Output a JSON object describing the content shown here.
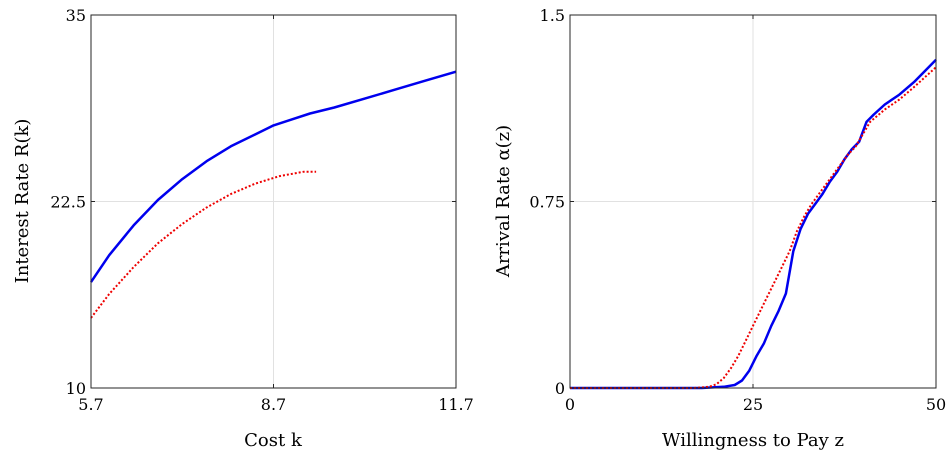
{
  "chart_data": [
    {
      "type": "line",
      "title": "",
      "xlabel": "Cost k",
      "ylabel": "Interest Rate R(k)",
      "xlim": [
        5.7,
        11.7
      ],
      "ylim": [
        10,
        35
      ],
      "xticks": [
        5.7,
        8.7,
        11.7
      ],
      "xtick_labels": [
        "5.7",
        "8.7",
        "11.7"
      ],
      "yticks": [
        10,
        22.5,
        35
      ],
      "ytick_labels": [
        "10",
        "22.5",
        "35"
      ],
      "grid": true,
      "legend": "none",
      "series": [
        {
          "color": "#0000ee",
          "style": "solid",
          "x": [
            5.7,
            6.0,
            6.4,
            6.8,
            7.2,
            7.6,
            8.0,
            8.4,
            8.7,
            9.0,
            9.3,
            9.7,
            10.2,
            10.7,
            11.2,
            11.7
          ],
          "y": [
            17.1,
            18.9,
            20.9,
            22.6,
            24.0,
            25.2,
            26.2,
            27.0,
            27.6,
            28.0,
            28.4,
            28.8,
            29.4,
            30.0,
            30.6,
            31.2
          ]
        },
        {
          "color": "#ee0000",
          "style": "dotted",
          "x": [
            5.7,
            6.0,
            6.4,
            6.8,
            7.2,
            7.6,
            8.0,
            8.4,
            8.8,
            9.2,
            9.4
          ],
          "y": [
            14.7,
            16.3,
            18.1,
            19.7,
            21.0,
            22.1,
            23.0,
            23.7,
            24.2,
            24.5,
            24.5
          ]
        }
      ]
    },
    {
      "type": "line",
      "title": "",
      "xlabel": "Willingness to Pay z",
      "ylabel": "Arrival Rate α(z)",
      "xlim": [
        0,
        50
      ],
      "ylim": [
        0,
        1.5
      ],
      "xticks": [
        0,
        25,
        50
      ],
      "xtick_labels": [
        "0",
        "25",
        "50"
      ],
      "yticks": [
        0,
        0.75,
        1.5
      ],
      "ytick_labels": [
        "0",
        "0.75",
        "1.5"
      ],
      "grid": true,
      "legend": "none",
      "series": [
        {
          "color": "#0000ee",
          "style": "solid",
          "x": [
            0,
            10,
            18,
            21,
            22.5,
            23.5,
            24.5,
            25.5,
            26.5,
            27.5,
            28.5,
            29.5,
            30.5,
            31.5,
            32.5,
            33.5,
            34.5,
            35.5,
            36.5,
            37.5,
            38.5,
            39.5,
            40.5,
            41.5,
            43,
            45,
            47,
            50
          ],
          "y": [
            0,
            0,
            0,
            0.005,
            0.012,
            0.03,
            0.07,
            0.13,
            0.18,
            0.25,
            0.31,
            0.38,
            0.55,
            0.64,
            0.7,
            0.74,
            0.78,
            0.83,
            0.87,
            0.92,
            0.96,
            0.99,
            1.07,
            1.1,
            1.14,
            1.18,
            1.23,
            1.32
          ]
        },
        {
          "color": "#ee0000",
          "style": "dotted",
          "x": [
            0,
            10,
            17,
            19,
            20,
            21,
            22,
            23,
            24,
            25,
            26,
            27,
            28,
            29,
            30,
            31,
            32,
            33,
            34,
            35,
            36,
            37,
            38,
            39,
            40,
            41,
            43,
            45,
            47,
            50
          ],
          "y": [
            0,
            0,
            0,
            0.005,
            0.015,
            0.04,
            0.08,
            0.13,
            0.19,
            0.25,
            0.31,
            0.37,
            0.43,
            0.49,
            0.55,
            0.63,
            0.69,
            0.74,
            0.78,
            0.82,
            0.86,
            0.9,
            0.94,
            0.97,
            1.02,
            1.07,
            1.12,
            1.16,
            1.21,
            1.29
          ]
        }
      ]
    }
  ]
}
